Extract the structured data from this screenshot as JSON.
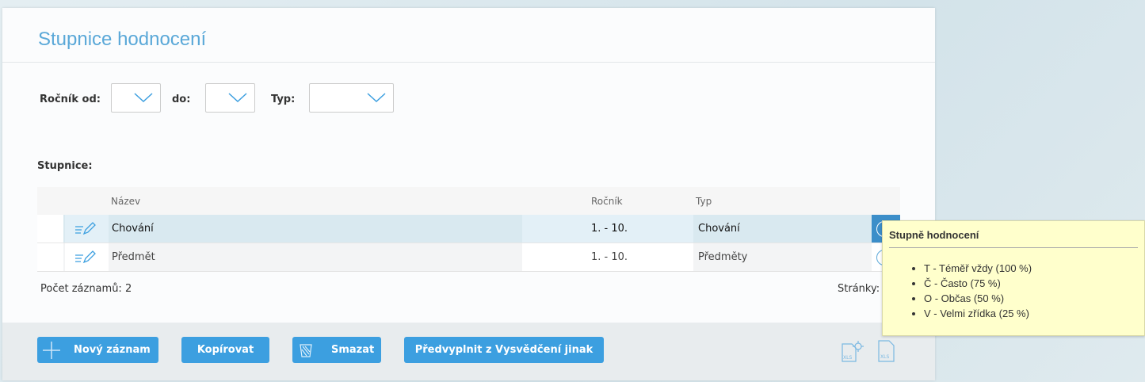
{
  "page": {
    "title": "Stupnice hodnocení"
  },
  "filters": {
    "rocnik_od_label": "Ročník od:",
    "do_label": "do:",
    "typ_label": "Typ:"
  },
  "section_label": "Stupnice:",
  "table": {
    "columns": [
      "Název",
      "Ročník",
      "Typ"
    ],
    "rows": [
      {
        "nazev": "Chování",
        "rocnik": "1. - 10.",
        "typ": "Chování",
        "selected": true
      },
      {
        "nazev": "Předmět",
        "rocnik": "1. - 10.",
        "typ": "Předměty",
        "selected": false
      }
    ]
  },
  "footer": {
    "count": "Počet záznamů: 2",
    "pages": "Stránky:"
  },
  "buttons": {
    "new": "Nový záznam",
    "copy": "Kopírovat",
    "delete": "Smazat",
    "prefill": "Předvyplnit z Vysvědčení jinak"
  },
  "tooltip": {
    "title": "Stupně hodnocení",
    "items": [
      "T - Téměř vždy (100 %)",
      "Č - Často (75 %)",
      "O - Občas (50 %)",
      "V - Velmi zřídka (25 %)"
    ]
  },
  "colors": {
    "accent": "#3c9fe0",
    "selected_row": "#d9e9f0",
    "tooltip_bg": "#ffffcc"
  }
}
